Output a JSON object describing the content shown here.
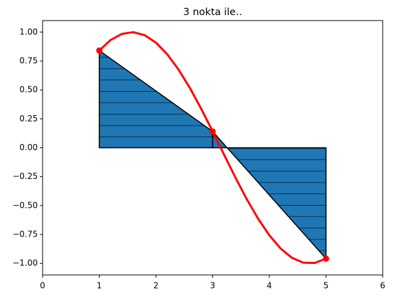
{
  "chart_data": {
    "type": "trapezoid",
    "title": "3 nokta ile..",
    "curve": {
      "color": "#ff0000",
      "x": [
        1.0,
        1.2,
        1.4,
        1.6,
        1.8,
        2.0,
        2.2,
        2.4,
        2.6,
        2.8,
        3.0,
        3.2,
        3.4,
        3.6,
        3.8,
        4.0,
        4.2,
        4.4,
        4.6,
        4.8,
        5.0
      ],
      "y": [
        0.841,
        0.932,
        0.985,
        1.0,
        0.974,
        0.909,
        0.808,
        0.675,
        0.516,
        0.335,
        0.141,
        -0.058,
        -0.256,
        -0.443,
        -0.612,
        -0.757,
        -0.872,
        -0.952,
        -0.994,
        -0.996,
        -0.959
      ]
    },
    "points": {
      "color": "#ff0000",
      "x": [
        1,
        3,
        5
      ],
      "y": [
        0.841,
        0.141,
        -0.959
      ]
    },
    "fill_color": "#1f77b4",
    "xlim": [
      0,
      6
    ],
    "xticks": [
      0,
      1,
      2,
      3,
      4,
      5,
      6
    ],
    "ylim": [
      -1.1,
      1.1
    ],
    "yticks": [
      {
        "value": -1,
        "label": "−1.00"
      },
      {
        "value": -0.75,
        "label": "−0.75"
      },
      {
        "value": -0.5,
        "label": "−0.50"
      },
      {
        "value": -0.25,
        "label": "−0.25"
      },
      {
        "value": 0,
        "label": "0.00"
      },
      {
        "value": 0.25,
        "label": "0.25"
      },
      {
        "value": 0.5,
        "label": "0.50"
      },
      {
        "value": 0.75,
        "label": "0.75"
      },
      {
        "value": 1,
        "label": "1.00"
      }
    ]
  }
}
